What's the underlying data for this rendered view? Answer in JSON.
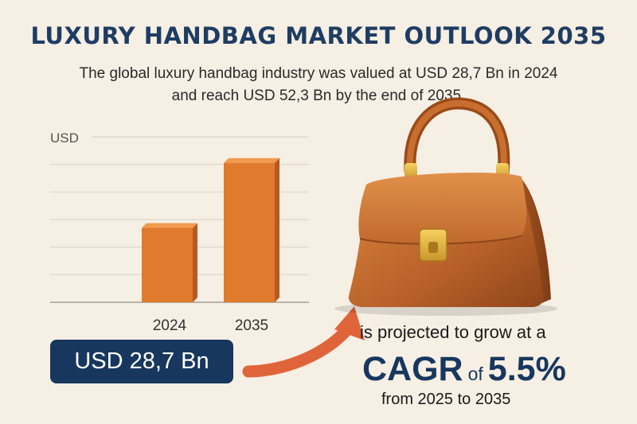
{
  "header": {
    "title": "LUXURY HANDBAG MARKET OUTLOOK 2035",
    "subtitle_line1": "The global luxury handbag industry was valued at USD 28,7 Bn in 2024",
    "subtitle_line2": "and reach USD 52,3 Bn by the end of 2035."
  },
  "chart_data": {
    "type": "bar",
    "categories": [
      "2024",
      "2035"
    ],
    "values": [
      28.7,
      52.3
    ],
    "ylabel": "USD",
    "ylim": [
      0,
      60
    ],
    "grid": true,
    "bar_color": "#e07a2c"
  },
  "callout": {
    "value": "USD 28,7 Bn"
  },
  "cagr": {
    "lead": "is projected to grow at a",
    "label": "CAGR",
    "of": "of",
    "value": "5.5%",
    "period": "from 2025 to 2035"
  },
  "colors": {
    "accent": "#e07a2c",
    "navy": "#17375e",
    "arrow": "#e0643a",
    "background": "#f6efe4"
  },
  "icons": {
    "bag": "handbag-illustration",
    "arrow": "curved-arrow-icon"
  }
}
